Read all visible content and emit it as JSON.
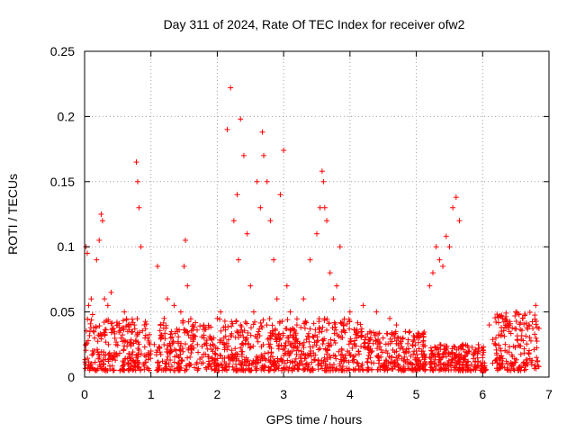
{
  "chart_data": {
    "type": "scatter",
    "title": "Day 311 of 2024, Rate Of TEC Index for receiver ofw2",
    "xlabel": "GPS time / hours",
    "ylabel": "ROTI / TECUs",
    "xlim": [
      0,
      7
    ],
    "ylim": [
      0,
      0.25
    ],
    "xticks": [
      0,
      1,
      2,
      3,
      4,
      5,
      6,
      7
    ],
    "xtick_labels": [
      "0",
      "1",
      "2",
      "3",
      "4",
      "5",
      "6",
      "7"
    ],
    "yticks": [
      0,
      0.05,
      0.1,
      0.15,
      0.2,
      0.25
    ],
    "ytick_labels": [
      "0",
      "0.05",
      "0.1",
      "0.15",
      "0.2",
      "0.25"
    ],
    "grid": true,
    "marker": "+",
    "series_color": "#ff0000",
    "series": [
      {
        "name": "ROTI",
        "x": [
          0.02,
          0.04,
          0.06,
          0.08,
          0.1,
          0.12,
          0.15,
          0.18,
          0.22,
          0.25,
          0.27,
          0.3,
          0.35,
          0.4,
          0.45,
          0.5,
          0.55,
          0.6,
          0.65,
          0.7,
          0.75,
          0.78,
          0.8,
          0.82,
          0.85,
          0.9,
          0.95,
          1.0,
          1.05,
          1.1,
          1.15,
          1.2,
          1.25,
          1.3,
          1.35,
          1.4,
          1.45,
          1.5,
          1.52,
          1.55,
          1.6,
          1.7,
          1.8,
          1.9,
          2.0,
          2.05,
          2.1,
          2.15,
          2.2,
          2.25,
          2.3,
          2.32,
          2.35,
          2.4,
          2.45,
          2.5,
          2.55,
          2.6,
          2.65,
          2.68,
          2.7,
          2.75,
          2.8,
          2.85,
          2.9,
          2.95,
          3.0,
          3.05,
          3.1,
          3.2,
          3.3,
          3.4,
          3.5,
          3.55,
          3.58,
          3.6,
          3.62,
          3.65,
          3.7,
          3.75,
          3.8,
          3.85,
          3.9,
          4.0,
          4.1,
          4.2,
          4.3,
          4.4,
          4.5,
          4.6,
          4.7,
          4.8,
          4.9,
          5.0,
          5.1,
          5.2,
          5.25,
          5.3,
          5.35,
          5.4,
          5.45,
          5.5,
          5.55,
          5.6,
          5.65,
          5.7,
          5.8,
          5.9,
          6.0,
          6.1,
          6.2,
          6.3,
          6.4,
          6.5,
          6.6,
          6.7,
          6.8
        ],
        "y": [
          0.1,
          0.095,
          0.055,
          0.035,
          0.06,
          0.048,
          0.03,
          0.09,
          0.105,
          0.125,
          0.12,
          0.06,
          0.055,
          0.065,
          0.035,
          0.04,
          0.03,
          0.05,
          0.035,
          0.025,
          0.04,
          0.165,
          0.15,
          0.13,
          0.1,
          0.04,
          0.03,
          0.02,
          0.025,
          0.085,
          0.03,
          0.045,
          0.06,
          0.03,
          0.055,
          0.035,
          0.05,
          0.085,
          0.105,
          0.07,
          0.03,
          0.025,
          0.03,
          0.03,
          0.045,
          0.05,
          0.03,
          0.19,
          0.222,
          0.12,
          0.14,
          0.09,
          0.198,
          0.17,
          0.11,
          0.07,
          0.05,
          0.15,
          0.13,
          0.188,
          0.17,
          0.15,
          0.12,
          0.09,
          0.06,
          0.14,
          0.174,
          0.07,
          0.05,
          0.04,
          0.06,
          0.09,
          0.11,
          0.13,
          0.158,
          0.15,
          0.13,
          0.12,
          0.08,
          0.06,
          0.07,
          0.1,
          0.04,
          0.05,
          0.03,
          0.055,
          0.035,
          0.05,
          0.03,
          0.045,
          0.04,
          0.03,
          0.035,
          0.02,
          0.025,
          0.07,
          0.08,
          0.1,
          0.09,
          0.085,
          0.108,
          0.1,
          0.13,
          0.138,
          0.12,
          0.025,
          0.02,
          0.02,
          0.015,
          0.04,
          0.03,
          0.045,
          0.035,
          0.05,
          0.045,
          0.04,
          0.055
        ],
        "dense_band_segments": [
          {
            "x": [
              0.0,
              1.0
            ],
            "y_range": [
              0.005,
              0.045
            ]
          },
          {
            "x": [
              1.08,
              3.0
            ],
            "y_range": [
              0.005,
              0.045
            ]
          },
          {
            "x": [
              3.0,
              4.2
            ],
            "y_range": [
              0.005,
              0.045
            ]
          },
          {
            "x": [
              4.2,
              5.15
            ],
            "y_range": [
              0.005,
              0.035
            ]
          },
          {
            "x": [
              5.2,
              6.05
            ],
            "y_range": [
              0.005,
              0.025
            ]
          },
          {
            "x": [
              6.15,
              6.85
            ],
            "y_range": [
              0.005,
              0.05
            ]
          }
        ]
      }
    ]
  }
}
